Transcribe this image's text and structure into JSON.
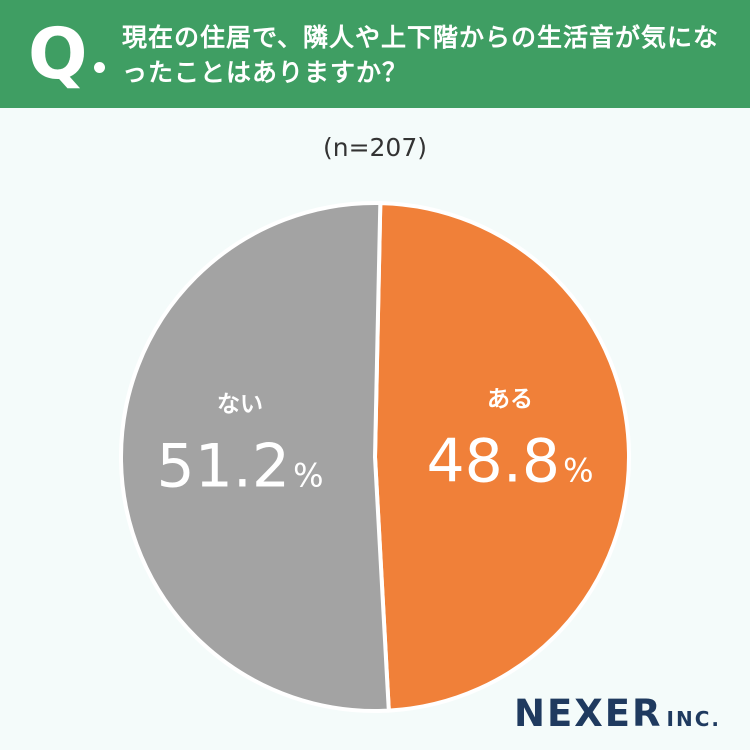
{
  "header": {
    "q_label": "Q",
    "question": "現在の住居で、隣人や上下階からの生活音が気になったことはありますか？",
    "bg_color": "#3f9e63"
  },
  "sample_size": "(n=207)",
  "logo": {
    "name": "NEXER",
    "suffix": "INC."
  },
  "chart_data": {
    "type": "pie",
    "title": "",
    "slices": [
      {
        "label": "ある",
        "value": 48.8,
        "display": "48.8",
        "unit": "%",
        "color": "#f08039"
      },
      {
        "label": "ない",
        "value": 51.2,
        "display": "51.2",
        "unit": "%",
        "color": "#a3a3a3"
      }
    ],
    "start_angle": "12 o'clock",
    "direction": "clockwise"
  }
}
